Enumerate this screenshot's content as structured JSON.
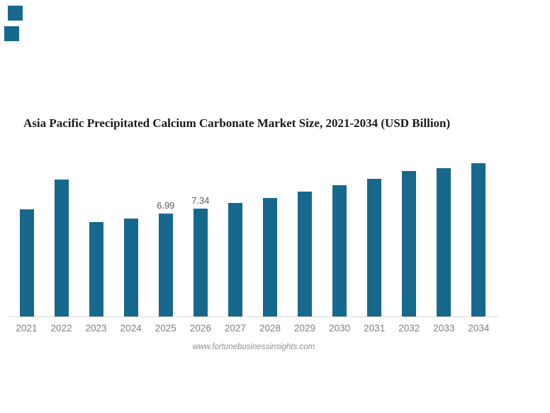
{
  "page": {
    "background": "#ffffff",
    "accent_color": "#16688C"
  },
  "chart_data": {
    "type": "bar",
    "title": "Asia Pacific Precipitated Calcium Carbonate Market Size, 2021-2034 (USD Billion)",
    "xlabel": "",
    "ylabel": "",
    "categories": [
      "2021",
      "2022",
      "2023",
      "2024",
      "2025",
      "2026",
      "2027",
      "2028",
      "2029",
      "2030",
      "2031",
      "2032",
      "2033",
      "2034"
    ],
    "values": [
      7.26,
      9.32,
      6.41,
      6.65,
      6.99,
      7.34,
      7.7,
      8.07,
      8.48,
      8.9,
      9.37,
      9.88,
      10.09,
      10.41
    ],
    "data_labels": {
      "2025": "6.99",
      "2026": "7.34"
    },
    "ylim": [
      0,
      11
    ],
    "grid": false,
    "legend": false,
    "bar_color": "#16688C",
    "axis_line_color": "#d9d9d9",
    "tick_label_color": "#7f7f7f",
    "value_label_color": "#595959"
  },
  "footer": {
    "source_text": "www.fortunebusinessinsights.com"
  }
}
